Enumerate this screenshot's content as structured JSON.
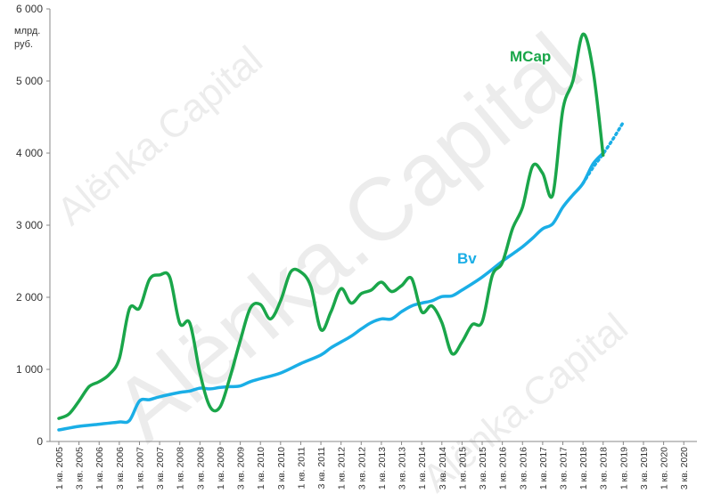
{
  "chart_data": {
    "type": "line",
    "unit_label": [
      "млрд.",
      "руб."
    ],
    "yticks": [
      "0",
      "1 000",
      "2 000",
      "3 000",
      "4 000",
      "5 000",
      "6 000"
    ],
    "ylim": [
      0,
      6000
    ],
    "grid": false,
    "categories": [
      "1 кв. 2005",
      "3 кв. 2005",
      "1 кв. 2006",
      "3 кв. 2006",
      "1 кв. 2007",
      "3 кв. 2007",
      "1 кв. 2008",
      "3 кв. 2008",
      "1 кв. 2009",
      "3 кв. 2009",
      "1 кв. 2010",
      "3 кв. 2010",
      "1 кв. 2011",
      "3 кв. 2011",
      "1 кв. 2012",
      "3 кв. 2012",
      "1 кв. 2013",
      "3 кв. 2013",
      "1 кв. 2014",
      "3 кв. 2014",
      "1 кв. 2015",
      "3 кв. 2015",
      "1 кв. 2016",
      "3 кв. 2016",
      "1 кв. 2017",
      "3 кв. 2017",
      "1 кв. 2018",
      "3 кв. 2018",
      "1 кв. 2019",
      "3 кв. 2019",
      "1 кв. 2020",
      "3 кв. 2020"
    ],
    "series": [
      {
        "name": "MCap",
        "color": "#1aa64a",
        "x": [
          0,
          0.5,
          1,
          1.5,
          2,
          2.5,
          3,
          3.5,
          4,
          4.5,
          5,
          5.5,
          6,
          6.5,
          7,
          7.5,
          8,
          8.5,
          9,
          9.5,
          10,
          10.5,
          11,
          11.5,
          12,
          12.5,
          13,
          13.5,
          14,
          14.5,
          15,
          15.5,
          16,
          16.5,
          17,
          17.5,
          18,
          18.5,
          19,
          19.5,
          20,
          20.5,
          21,
          21.5,
          22,
          22.5,
          23,
          23.5,
          24,
          24.5,
          25,
          25.5,
          26,
          26.5,
          27
        ],
        "values": [
          320,
          380,
          560,
          760,
          830,
          930,
          1150,
          1840,
          1850,
          2250,
          2310,
          2280,
          1640,
          1640,
          950,
          480,
          480,
          900,
          1400,
          1850,
          1900,
          1700,
          1950,
          2350,
          2350,
          2150,
          1550,
          1800,
          2120,
          1920,
          2050,
          2100,
          2210,
          2080,
          2160,
          2260,
          1800,
          1880,
          1650,
          1220,
          1380,
          1620,
          1660,
          2300,
          2480,
          2950,
          3250,
          3820,
          3720,
          3420,
          4600,
          5000,
          5650,
          5150,
          3970
        ]
      },
      {
        "name": "Bv",
        "color": "#1aaee6",
        "x": [
          0,
          1,
          2,
          3,
          3.5,
          4,
          4.5,
          5,
          6,
          6.5,
          7,
          7.5,
          8,
          8.5,
          9,
          9.5,
          10,
          11,
          12,
          13,
          13.5,
          14,
          14.5,
          15,
          15.5,
          16,
          16.5,
          17,
          17.5,
          18,
          18.5,
          19,
          19.5,
          20,
          21,
          22,
          22.5,
          23,
          23.5,
          24,
          24.5,
          25,
          25.5,
          26,
          26.5,
          27
        ],
        "values": [
          160,
          210,
          240,
          270,
          290,
          560,
          580,
          620,
          680,
          700,
          740,
          730,
          750,
          760,
          770,
          830,
          870,
          950,
          1080,
          1200,
          1300,
          1380,
          1460,
          1560,
          1650,
          1700,
          1700,
          1800,
          1880,
          1920,
          1950,
          2010,
          2020,
          2100,
          2280,
          2500,
          2600,
          2700,
          2820,
          2950,
          3020,
          3250,
          3420,
          3580,
          3850,
          4000
        ],
        "forecast": {
          "x": [
            26,
            26.5,
            27,
            27.5,
            28
          ],
          "values": [
            3580,
            3800,
            3990,
            4200,
            4430
          ]
        }
      }
    ]
  },
  "labels": {
    "mcap": "MCap",
    "bv": "Bv"
  },
  "watermark": "Alёnka.Capital"
}
